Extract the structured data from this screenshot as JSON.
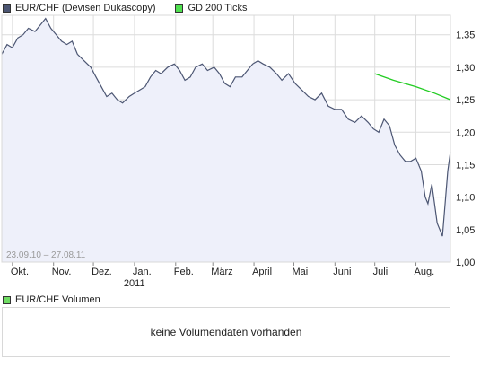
{
  "legend": {
    "series_label": "EUR/CHF (Devisen Dukascopy)",
    "series_color": "#4c5673",
    "ma_label": "GD 200 Ticks",
    "ma_color": "#22cc22"
  },
  "date_range": "23.09.10 – 27.08.11",
  "volume": {
    "legend_label": "EUR/CHF Volumen",
    "message": "keine Volumendaten vorhanden"
  },
  "chart_data": {
    "type": "area",
    "title": "EUR/CHF (Devisen Dukascopy)",
    "x_ticks": [
      "Okt.",
      "Nov.",
      "Dez.",
      "Jan.",
      "Feb.",
      "März",
      "April",
      "Mai",
      "Juni",
      "Juli",
      "Aug."
    ],
    "x_year_label": "2011",
    "y_ticks": [
      "1,35",
      "1,30",
      "1,25",
      "1,20",
      "1,15",
      "1,10",
      "1,05",
      "1,00"
    ],
    "ylim": [
      1.0,
      1.38
    ],
    "grid": true,
    "fill_color": "#eef0fa",
    "line_color": "#4c5673",
    "series": [
      {
        "name": "EUR/CHF (Devisen Dukascopy)",
        "x": [
          "2010-09-23",
          "2010-09-27",
          "2010-10-01",
          "2010-10-05",
          "2010-10-09",
          "2010-10-13",
          "2010-10-18",
          "2010-10-22",
          "2010-10-26",
          "2010-10-30",
          "2010-11-03",
          "2010-11-07",
          "2010-11-11",
          "2010-11-15",
          "2010-11-19",
          "2010-11-24",
          "2010-11-29",
          "2010-12-03",
          "2010-12-07",
          "2010-12-11",
          "2010-12-15",
          "2010-12-19",
          "2010-12-23",
          "2010-12-28",
          "2011-01-01",
          "2011-01-05",
          "2011-01-09",
          "2011-01-13",
          "2011-01-17",
          "2011-01-21",
          "2011-01-26",
          "2011-01-31",
          "2011-02-04",
          "2011-02-08",
          "2011-02-12",
          "2011-02-16",
          "2011-02-21",
          "2011-02-25",
          "2011-03-02",
          "2011-03-06",
          "2011-03-10",
          "2011-03-14",
          "2011-03-18",
          "2011-03-23",
          "2011-03-27",
          "2011-03-31",
          "2011-04-04",
          "2011-04-08",
          "2011-04-13",
          "2011-04-18",
          "2011-04-22",
          "2011-04-27",
          "2011-05-02",
          "2011-05-07",
          "2011-05-12",
          "2011-05-17",
          "2011-05-22",
          "2011-05-27",
          "2011-06-01",
          "2011-06-06",
          "2011-06-11",
          "2011-06-16",
          "2011-06-21",
          "2011-06-26",
          "2011-06-30",
          "2011-07-04",
          "2011-07-08",
          "2011-07-12",
          "2011-07-16",
          "2011-07-20",
          "2011-07-24",
          "2011-07-28",
          "2011-08-01",
          "2011-08-05",
          "2011-08-08",
          "2011-08-10",
          "2011-08-13",
          "2011-08-17",
          "2011-08-21",
          "2011-08-25",
          "2011-08-27"
        ],
        "y": [
          1.32,
          1.335,
          1.33,
          1.345,
          1.35,
          1.36,
          1.355,
          1.365,
          1.375,
          1.36,
          1.35,
          1.34,
          1.335,
          1.34,
          1.32,
          1.31,
          1.3,
          1.285,
          1.27,
          1.255,
          1.26,
          1.25,
          1.245,
          1.255,
          1.26,
          1.265,
          1.27,
          1.285,
          1.295,
          1.29,
          1.3,
          1.305,
          1.295,
          1.28,
          1.285,
          1.3,
          1.305,
          1.295,
          1.3,
          1.29,
          1.275,
          1.27,
          1.285,
          1.285,
          1.295,
          1.305,
          1.31,
          1.305,
          1.3,
          1.29,
          1.28,
          1.29,
          1.275,
          1.265,
          1.255,
          1.25,
          1.26,
          1.24,
          1.235,
          1.235,
          1.22,
          1.215,
          1.225,
          1.215,
          1.205,
          1.2,
          1.22,
          1.21,
          1.18,
          1.165,
          1.155,
          1.155,
          1.16,
          1.14,
          1.1,
          1.09,
          1.12,
          1.06,
          1.04,
          1.14,
          1.17
        ]
      },
      {
        "name": "GD 200 Ticks",
        "x": [
          "2011-07-01",
          "2011-07-15",
          "2011-08-01",
          "2011-08-15",
          "2011-08-27"
        ],
        "y": [
          1.29,
          1.28,
          1.27,
          1.26,
          1.25
        ]
      }
    ]
  }
}
